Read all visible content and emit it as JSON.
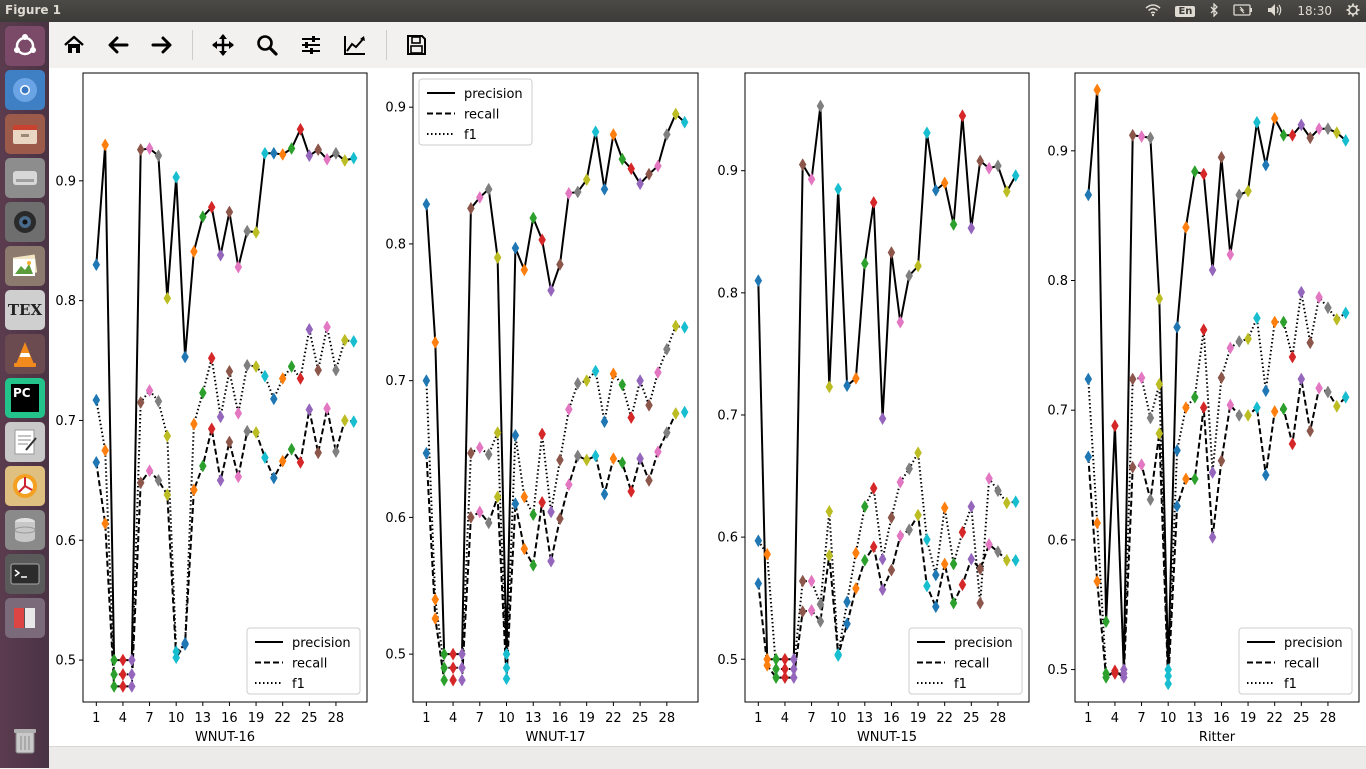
{
  "window": {
    "title": "Figure 1"
  },
  "tray": {
    "keyboard": "En",
    "clock": "18:30"
  },
  "launcher": {
    "icons": [
      "ubuntu-logo-icon",
      "chromium-icon",
      "file-manager-icon",
      "disk-icon",
      "camera-icon",
      "image-viewer-icon",
      "texmaker-icon",
      "vlc-icon",
      "pycharm-icon",
      "text-editor-icon",
      "rhythmbox-icon",
      "database-icon",
      "terminal-icon",
      "reader-icon",
      "trash-icon"
    ],
    "texmaker_text": "TEX",
    "pycharm_text": "PC"
  },
  "toolbar": {
    "buttons": [
      "home-icon",
      "back-icon",
      "forward-icon",
      "pan-icon",
      "zoom-icon",
      "subplots-icon",
      "edit-axes-icon",
      "save-icon"
    ]
  },
  "legend_labels": [
    "precision",
    "recall",
    "f1"
  ],
  "chart_data": [
    {
      "type": "line",
      "xlabel": "WNUT-16",
      "xticks": [
        1,
        4,
        7,
        10,
        13,
        16,
        19,
        22,
        25,
        28
      ],
      "xlim": [
        -0.5,
        31.5
      ],
      "ylim": [
        0.465,
        0.99
      ],
      "yticks": [
        0.5,
        0.6,
        0.7,
        0.8,
        0.9
      ],
      "legend": "lower right",
      "x": [
        1,
        2,
        3,
        4,
        5,
        6,
        7,
        8,
        9,
        10,
        11,
        12,
        13,
        14,
        15,
        16,
        17,
        18,
        19,
        20,
        21,
        22,
        23,
        24,
        25,
        26,
        27,
        28,
        29,
        30
      ],
      "series": [
        {
          "name": "precision",
          "style": "solid",
          "values": [
            0.83,
            0.93,
            0.5,
            0.5,
            0.5,
            0.926,
            0.927,
            0.921,
            0.802,
            0.903,
            0.753,
            0.841,
            0.87,
            0.878,
            0.838,
            0.874,
            0.828,
            0.858,
            0.857,
            0.923,
            0.923,
            0.922,
            0.927,
            0.943,
            0.921,
            0.926,
            0.918,
            0.923,
            0.917,
            0.919
          ]
        },
        {
          "name": "recall",
          "style": "dashed",
          "values": [
            0.665,
            0.614,
            0.478,
            0.478,
            0.478,
            0.648,
            0.658,
            0.65,
            0.638,
            0.502,
            0.514,
            0.642,
            0.662,
            0.693,
            0.65,
            0.682,
            0.653,
            0.691,
            0.69,
            0.669,
            0.652,
            0.666,
            0.676,
            0.665,
            0.709,
            0.673,
            0.71,
            0.674,
            0.7,
            0.699
          ]
        },
        {
          "name": "f1",
          "style": "dotted",
          "values": [
            0.717,
            0.675,
            0.488,
            0.488,
            0.488,
            0.715,
            0.725,
            0.716,
            0.687,
            0.507,
            0.513,
            0.697,
            0.723,
            0.752,
            0.703,
            0.741,
            0.706,
            0.746,
            0.745,
            0.737,
            0.718,
            0.735,
            0.745,
            0.735,
            0.776,
            0.742,
            0.778,
            0.742,
            0.767,
            0.766
          ]
        }
      ]
    },
    {
      "type": "line",
      "xlabel": "WNUT-17",
      "xticks": [
        1,
        4,
        7,
        10,
        13,
        16,
        19,
        22,
        25,
        28
      ],
      "xlim": [
        -0.5,
        31.5
      ],
      "ylim": [
        0.465,
        0.925
      ],
      "yticks": [
        0.5,
        0.6,
        0.7,
        0.8,
        0.9
      ],
      "legend": "upper left",
      "x": [
        1,
        2,
        3,
        4,
        5,
        6,
        7,
        8,
        9,
        10,
        11,
        12,
        13,
        14,
        15,
        16,
        17,
        18,
        19,
        20,
        21,
        22,
        23,
        24,
        25,
        26,
        27,
        28,
        29,
        30
      ],
      "series": [
        {
          "name": "precision",
          "style": "solid",
          "values": [
            0.829,
            0.728,
            0.5,
            0.5,
            0.5,
            0.826,
            0.834,
            0.84,
            0.79,
            0.5,
            0.797,
            0.781,
            0.819,
            0.803,
            0.766,
            0.785,
            0.837,
            0.838,
            0.847,
            0.882,
            0.84,
            0.88,
            0.862,
            0.855,
            0.844,
            0.851,
            0.857,
            0.88,
            0.895,
            0.889
          ]
        },
        {
          "name": "recall",
          "style": "dashed",
          "values": [
            0.647,
            0.526,
            0.481,
            0.481,
            0.481,
            0.6,
            0.604,
            0.596,
            0.615,
            0.482,
            0.61,
            0.577,
            0.565,
            0.611,
            0.568,
            0.599,
            0.624,
            0.645,
            0.642,
            0.645,
            0.617,
            0.643,
            0.64,
            0.619,
            0.643,
            0.627,
            0.648,
            0.662,
            0.676,
            0.677
          ]
        },
        {
          "name": "f1",
          "style": "dotted",
          "values": [
            0.7,
            0.54,
            0.49,
            0.49,
            0.49,
            0.647,
            0.651,
            0.646,
            0.662,
            0.49,
            0.66,
            0.615,
            0.602,
            0.661,
            0.604,
            0.642,
            0.679,
            0.698,
            0.7,
            0.707,
            0.67,
            0.705,
            0.697,
            0.673,
            0.7,
            0.682,
            0.706,
            0.723,
            0.74,
            0.739
          ]
        }
      ]
    },
    {
      "type": "line",
      "xlabel": "WNUT-15",
      "xticks": [
        1,
        4,
        7,
        10,
        13,
        16,
        19,
        22,
        25,
        28
      ],
      "xlim": [
        -0.5,
        31.5
      ],
      "ylim": [
        0.465,
        0.98
      ],
      "yticks": [
        0.5,
        0.6,
        0.7,
        0.8,
        0.9
      ],
      "legend": "lower right",
      "x": [
        1,
        2,
        3,
        4,
        5,
        6,
        7,
        8,
        9,
        10,
        11,
        12,
        13,
        14,
        15,
        16,
        17,
        18,
        19,
        20,
        21,
        22,
        23,
        24,
        25,
        26,
        27,
        28,
        29,
        30
      ],
      "series": [
        {
          "name": "precision",
          "style": "solid",
          "values": [
            0.81,
            0.5,
            0.5,
            0.5,
            0.5,
            0.905,
            0.893,
            0.953,
            0.723,
            0.885,
            0.724,
            0.73,
            0.824,
            0.874,
            0.697,
            0.833,
            0.776,
            0.814,
            0.822,
            0.931,
            0.884,
            0.89,
            0.856,
            0.945,
            0.853,
            0.908,
            0.902,
            0.904,
            0.883,
            0.896
          ]
        },
        {
          "name": "recall",
          "style": "dashed",
          "values": [
            0.562,
            0.495,
            0.485,
            0.485,
            0.485,
            0.539,
            0.54,
            0.531,
            0.585,
            0.503,
            0.529,
            0.558,
            0.581,
            0.592,
            0.557,
            0.573,
            0.601,
            0.606,
            0.618,
            0.56,
            0.543,
            0.578,
            0.546,
            0.561,
            0.582,
            0.574,
            0.594,
            0.588,
            0.581,
            0.581
          ]
        },
        {
          "name": "f1",
          "style": "dotted",
          "values": [
            0.597,
            0.586,
            0.492,
            0.492,
            0.492,
            0.564,
            0.564,
            0.545,
            0.621,
            0.504,
            0.547,
            0.587,
            0.625,
            0.64,
            0.582,
            0.616,
            0.645,
            0.656,
            0.669,
            0.598,
            0.569,
            0.624,
            0.578,
            0.604,
            0.625,
            0.546,
            0.648,
            0.638,
            0.628,
            0.629
          ]
        }
      ]
    },
    {
      "type": "line",
      "xlabel": "Ritter",
      "xticks": [
        1,
        4,
        7,
        10,
        13,
        16,
        19,
        22,
        25,
        28
      ],
      "xlim": [
        -0.5,
        31.5
      ],
      "ylim": [
        0.475,
        0.96
      ],
      "yticks": [
        0.5,
        0.6,
        0.7,
        0.8,
        0.9
      ],
      "legend": "lower right",
      "x": [
        1,
        2,
        3,
        4,
        5,
        6,
        7,
        8,
        9,
        10,
        11,
        12,
        13,
        14,
        15,
        16,
        17,
        18,
        19,
        20,
        21,
        22,
        23,
        24,
        25,
        26,
        27,
        28,
        29,
        30
      ],
      "series": [
        {
          "name": "precision",
          "style": "solid",
          "values": [
            0.866,
            0.947,
            0.537,
            0.688,
            0.5,
            0.912,
            0.911,
            0.91,
            0.786,
            0.5,
            0.764,
            0.841,
            0.884,
            0.882,
            0.808,
            0.895,
            0.82,
            0.866,
            0.869,
            0.922,
            0.889,
            0.925,
            0.912,
            0.912,
            0.92,
            0.91,
            0.917,
            0.917,
            0.914,
            0.908
          ]
        },
        {
          "name": "recall",
          "style": "dashed",
          "values": [
            0.664,
            0.568,
            0.494,
            0.499,
            0.494,
            0.656,
            0.658,
            0.631,
            0.682,
            0.489,
            0.626,
            0.647,
            0.647,
            0.702,
            0.602,
            0.661,
            0.704,
            0.696,
            0.696,
            0.702,
            0.65,
            0.699,
            0.701,
            0.674,
            0.724,
            0.684,
            0.717,
            0.714,
            0.703,
            0.71
          ]
        },
        {
          "name": "f1",
          "style": "dotted",
          "values": [
            0.724,
            0.613,
            0.497,
            0.497,
            0.497,
            0.724,
            0.725,
            0.694,
            0.72,
            0.495,
            0.669,
            0.702,
            0.71,
            0.762,
            0.652,
            0.725,
            0.748,
            0.753,
            0.755,
            0.771,
            0.715,
            0.768,
            0.768,
            0.741,
            0.791,
            0.752,
            0.787,
            0.779,
            0.77,
            0.775
          ]
        }
      ]
    }
  ],
  "palette": [
    "#1f77b4",
    "#ff7f0e",
    "#2ca02c",
    "#d62728",
    "#9467bd",
    "#8c564b",
    "#e377c2",
    "#7f7f7f",
    "#bcbd22",
    "#17becf"
  ]
}
